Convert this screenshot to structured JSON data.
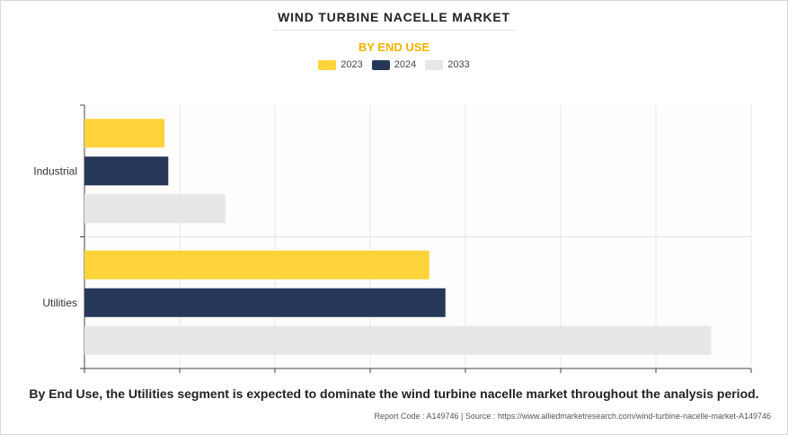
{
  "header": {
    "title": "WIND TURBINE NACELLE MARKET",
    "subtitle": "BY END USE"
  },
  "chart_data": {
    "type": "bar",
    "orientation": "horizontal",
    "categories": [
      "Industrial",
      "Utilities"
    ],
    "series": [
      {
        "name": "2023",
        "color": "#ffd43b",
        "values": [
          0.84,
          3.62
        ]
      },
      {
        "name": "2024",
        "color": "#263759",
        "values": [
          0.88,
          3.79
        ]
      },
      {
        "name": "2033",
        "color": "#e7e7e7",
        "values": [
          1.48,
          6.58
        ]
      }
    ],
    "xlim": [
      0,
      7
    ],
    "grid": true,
    "legend_position": "top-center",
    "x_axis_tick_labels": false
  },
  "footer": {
    "caption": "By End Use, the Utilities segment is expected to dominate the wind turbine nacelle market throughout the analysis period.",
    "source": "Report Code : A149746  |  Source : https://www.alliedmarketresearch.com/wind-turbine-nacelle-market-A149746"
  }
}
